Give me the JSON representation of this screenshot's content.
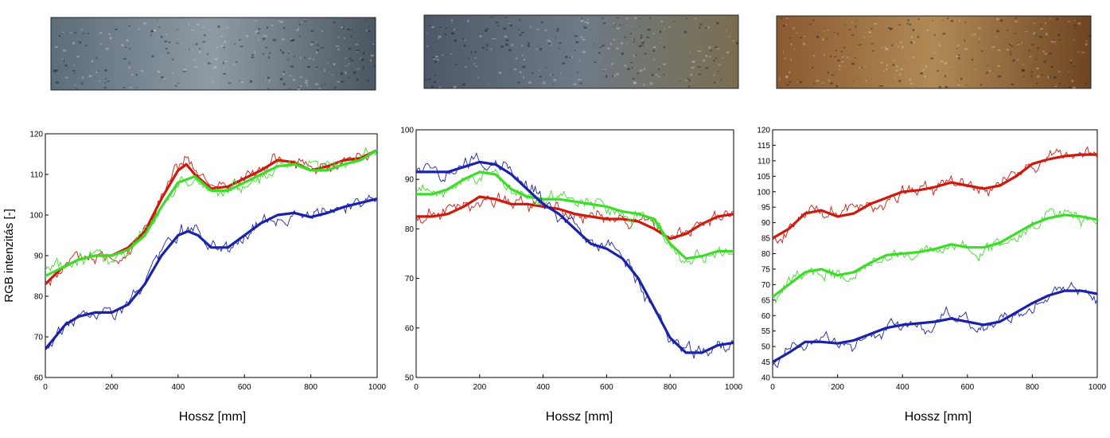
{
  "chart_data": [
    {
      "type": "line",
      "xlabel": "Hossz [mm]",
      "ylabel": "RGB intenzitás [-]",
      "xlim": [
        0,
        1000
      ],
      "ylim": [
        60,
        120
      ],
      "xticks": [
        0,
        200,
        400,
        600,
        800,
        1000
      ],
      "yticks": [
        60,
        70,
        80,
        90,
        100,
        110,
        120
      ],
      "grid": false,
      "photo_colors": [
        "#5d6d79",
        "#8e9ba4",
        "#4a5660"
      ],
      "series": [
        {
          "color": "#cc1a0e",
          "x": [
            0,
            50,
            100,
            150,
            200,
            250,
            300,
            350,
            400,
            425,
            450,
            500,
            550,
            600,
            650,
            700,
            750,
            800,
            850,
            900,
            950,
            1000
          ],
          "y": [
            83,
            87,
            89,
            90,
            90,
            92,
            96,
            104,
            111,
            112.5,
            110,
            106.5,
            107,
            109,
            111,
            113.5,
            113,
            111,
            112,
            113.5,
            114,
            116
          ]
        },
        {
          "color": "#3fdb2a",
          "x": [
            0,
            50,
            100,
            150,
            200,
            250,
            300,
            350,
            400,
            450,
            500,
            550,
            600,
            650,
            700,
            750,
            800,
            850,
            900,
            950,
            1000
          ],
          "y": [
            85,
            87,
            89,
            90,
            90,
            91.5,
            95,
            102,
            108,
            109.5,
            106,
            106,
            108,
            110,
            112,
            112.5,
            111,
            111,
            112.5,
            113.5,
            116
          ]
        },
        {
          "color": "#1a22a8",
          "x": [
            0,
            30,
            60,
            100,
            150,
            200,
            250,
            300,
            350,
            400,
            430,
            460,
            500,
            550,
            600,
            650,
            700,
            750,
            800,
            850,
            900,
            950,
            1000
          ],
          "y": [
            67,
            70,
            73,
            75,
            76,
            76,
            78,
            83,
            90,
            95,
            96,
            95,
            92,
            92,
            95,
            98,
            100,
            100.5,
            99.5,
            100.5,
            102,
            103,
            104
          ]
        }
      ]
    },
    {
      "type": "line",
      "xlabel": "Hossz [mm]",
      "ylabel": "",
      "xlim": [
        0,
        1000
      ],
      "ylim": [
        50,
        100
      ],
      "xticks": [
        0,
        200,
        400,
        600,
        800,
        1000
      ],
      "yticks": [
        50,
        60,
        70,
        80,
        90,
        100
      ],
      "grid": false,
      "photo_colors": [
        "#4e5868",
        "#6e7a86",
        "#7a6e50"
      ],
      "series": [
        {
          "color": "#cc1a0e",
          "x": [
            0,
            50,
            100,
            150,
            200,
            250,
            300,
            350,
            400,
            450,
            500,
            550,
            600,
            650,
            700,
            750,
            800,
            850,
            900,
            950,
            1000
          ],
          "y": [
            82.5,
            82.5,
            83,
            84.5,
            86.5,
            86,
            85,
            85,
            84.5,
            84,
            83,
            82.5,
            82,
            82,
            81.5,
            80,
            78,
            79,
            81,
            82.5,
            83
          ]
        },
        {
          "color": "#3fdb2a",
          "x": [
            0,
            50,
            100,
            150,
            200,
            250,
            300,
            350,
            400,
            450,
            500,
            550,
            600,
            650,
            700,
            750,
            800,
            850,
            900,
            950,
            1000
          ],
          "y": [
            87,
            87,
            88,
            90,
            91.5,
            91,
            88,
            86.5,
            86,
            86,
            85.5,
            85,
            84.5,
            83.5,
            83,
            82,
            77,
            74,
            74.5,
            75.5,
            75.5
          ]
        },
        {
          "color": "#1a22a8",
          "x": [
            0,
            50,
            100,
            150,
            200,
            250,
            300,
            350,
            400,
            450,
            500,
            550,
            600,
            650,
            700,
            750,
            800,
            850,
            900,
            950,
            1000
          ],
          "y": [
            91.5,
            91.5,
            91.5,
            92.5,
            93.5,
            93,
            91,
            88,
            85,
            83,
            80,
            77,
            76,
            74,
            70,
            64,
            58,
            55,
            55,
            56.5,
            57
          ]
        }
      ]
    },
    {
      "type": "line",
      "xlabel": "Hossz [mm]",
      "ylabel": "",
      "xlim": [
        0,
        1000
      ],
      "ylim": [
        40,
        120
      ],
      "xticks": [
        0,
        200,
        400,
        600,
        800,
        1000
      ],
      "yticks": [
        40,
        45,
        50,
        55,
        60,
        65,
        70,
        75,
        80,
        85,
        90,
        95,
        100,
        105,
        110,
        115,
        120
      ],
      "grid": false,
      "photo_colors": [
        "#8a5a30",
        "#b08a55",
        "#6e4522"
      ],
      "series": [
        {
          "color": "#cc1a0e",
          "x": [
            0,
            50,
            100,
            150,
            200,
            250,
            300,
            350,
            400,
            450,
            500,
            550,
            600,
            650,
            700,
            750,
            800,
            850,
            900,
            950,
            1000
          ],
          "y": [
            85,
            88,
            93,
            94,
            92,
            93,
            96,
            98,
            100,
            100.5,
            101.5,
            103,
            102,
            101,
            102,
            105,
            109,
            110.5,
            111.5,
            112,
            112
          ]
        },
        {
          "color": "#3fdb2a",
          "x": [
            0,
            50,
            100,
            150,
            200,
            250,
            300,
            350,
            400,
            450,
            500,
            550,
            600,
            650,
            700,
            750,
            800,
            850,
            900,
            950,
            1000
          ],
          "y": [
            66,
            70,
            74,
            75,
            73,
            74,
            77,
            79.5,
            80,
            80.5,
            81.5,
            83,
            82,
            82,
            83.5,
            86.5,
            89.5,
            91.5,
            92.5,
            92,
            91
          ]
        },
        {
          "color": "#1a22a8",
          "x": [
            0,
            50,
            100,
            150,
            200,
            250,
            300,
            350,
            400,
            450,
            500,
            550,
            600,
            650,
            700,
            750,
            800,
            850,
            900,
            950,
            1000
          ],
          "y": [
            45,
            48,
            51.5,
            51.5,
            51,
            52,
            54,
            56,
            57,
            57.5,
            58,
            59,
            58,
            57,
            58,
            61,
            64,
            66.5,
            68,
            68,
            67
          ]
        }
      ]
    }
  ]
}
